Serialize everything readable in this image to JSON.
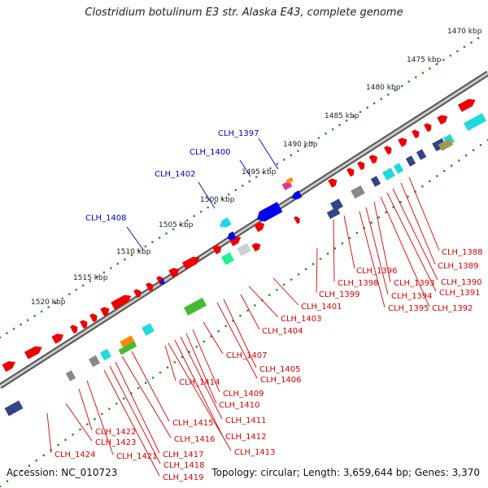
{
  "title": "Clostridium botulinum E3 str. Alaska E43, complete genome",
  "footer": {
    "accession": "Accession: NC_010723",
    "summary": "Topology: circular; Length: 3,659,644 bp; Genes: 3,370"
  },
  "colors": {
    "backbone": "#9a9a9a",
    "tick": "#2e8b2e",
    "forward_gene": "#ee0000",
    "label_red": "#dd0000",
    "label_blue": "#0000cc",
    "cds_blue": "#0000ee",
    "cyan": "#22d8e0",
    "navy": "#334488",
    "gray": "#888888",
    "green": "#44bb33",
    "orange": "#ff8800",
    "magenta": "#dd3399"
  },
  "scale_labels": [
    "1470 kbp",
    "1475 kbp",
    "1480 kbp",
    "1485 kbp",
    "1490 kbp",
    "1495 kbp",
    "1500 kbp",
    "1505 kbp",
    "1510 kbp",
    "1515 kbp",
    "1520 kbp"
  ],
  "labels_top": [
    "CLH_1397",
    "CLH_1400",
    "CLH_1402",
    "CLH_1408"
  ],
  "labels_bottom": [
    "CLH_1388",
    "CLH_1389",
    "CLH_1390",
    "CLH_1391",
    "CLH_1392",
    "CLH_1393",
    "CLH_1394",
    "CLH_1395",
    "CLH_1396",
    "CLH_1398",
    "CLH_1399",
    "CLH_1401",
    "CLH_1403",
    "CLH_1404",
    "CLH_1405",
    "CLH_1406",
    "CLH_1407",
    "CLH_1409",
    "CLH_1410",
    "CLH_1411",
    "CLH_1412",
    "CLH_1413",
    "CLH_1414",
    "CLH_1415",
    "CLH_1416",
    "CLH_1417",
    "CLH_1418",
    "CLH_1419",
    "CLH_1421",
    "CLH_1422",
    "CLH_1423",
    "CLH_1424"
  ]
}
